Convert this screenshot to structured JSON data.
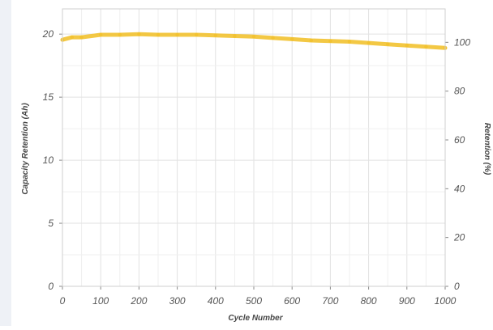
{
  "chart_data": {
    "type": "line",
    "title": "",
    "xlabel": "Cycle Number",
    "ylabel_left": "Capacity Retention (Ah)",
    "ylabel_right": "Retention (%)",
    "xlim": [
      0,
      1000
    ],
    "ylim_left": [
      0,
      22
    ],
    "ylim_right": [
      0,
      113.7
    ],
    "x_ticks": [
      "0",
      "100",
      "200",
      "300",
      "400",
      "500",
      "600",
      "700",
      "800",
      "900",
      "1000"
    ],
    "y_left_ticks": [
      "0",
      "5",
      "10",
      "15",
      "20"
    ],
    "y_right_ticks": [
      "0",
      "20",
      "40",
      "60",
      "80",
      "100"
    ],
    "grid": true,
    "legend": "none",
    "series": [
      {
        "color": "#f2c230",
        "x": [
          0,
          25,
          50,
          100,
          150,
          200,
          250,
          300,
          350,
          400,
          450,
          500,
          550,
          600,
          650,
          700,
          750,
          800,
          850,
          900,
          950,
          1000
        ],
        "values": [
          19.55,
          19.75,
          19.75,
          19.95,
          19.95,
          20.0,
          19.95,
          19.95,
          19.95,
          19.9,
          19.85,
          19.8,
          19.7,
          19.6,
          19.5,
          19.45,
          19.4,
          19.3,
          19.2,
          19.1,
          19.0,
          18.9
        ]
      }
    ]
  }
}
